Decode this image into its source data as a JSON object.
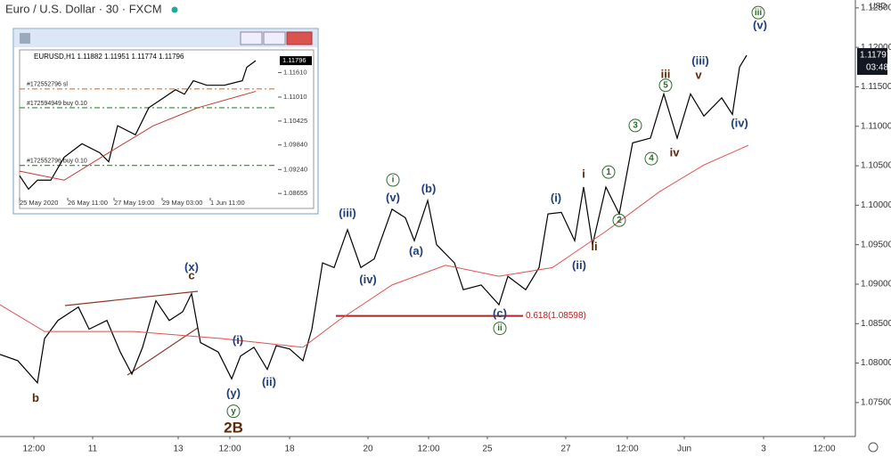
{
  "chart_data": [
    {
      "type": "line",
      "title": "Euro / U.S. Dollar · 30 · FXCM",
      "unit_label": "USD",
      "price_label": "1.11797",
      "timer_label": "03:48",
      "grid": false,
      "xlim": [
        0,
        960
      ],
      "ylim": [
        1.0707,
        1.126
      ],
      "yticks": [
        {
          "value": 1.075,
          "label": "1.07500"
        },
        {
          "value": 1.08,
          "label": "1.08000"
        },
        {
          "value": 1.085,
          "label": "1.08500"
        },
        {
          "value": 1.09,
          "label": "1.09000"
        },
        {
          "value": 1.095,
          "label": "1.09500"
        },
        {
          "value": 1.1,
          "label": "1.10000"
        },
        {
          "value": 1.105,
          "label": "1.10500"
        },
        {
          "value": 1.11,
          "label": "1.11000"
        },
        {
          "value": 1.115,
          "label": "1.11500"
        },
        {
          "value": 1.12,
          "label": "1.12000"
        },
        {
          "value": 1.125,
          "label": "1.12500"
        }
      ],
      "xticks": [
        {
          "value": 38,
          "label": "12:00"
        },
        {
          "value": 104,
          "label": "11"
        },
        {
          "value": 200,
          "label": "13"
        },
        {
          "value": 258,
          "label": "12:00"
        },
        {
          "value": 325,
          "label": "18"
        },
        {
          "value": 413,
          "label": "20"
        },
        {
          "value": 481,
          "label": "12:00"
        },
        {
          "value": 547,
          "label": "25"
        },
        {
          "value": 635,
          "label": "27"
        },
        {
          "value": 704,
          "label": "12:00"
        },
        {
          "value": 768,
          "label": "Jun"
        },
        {
          "value": 857,
          "label": "3"
        },
        {
          "value": 925,
          "label": "12:00"
        }
      ],
      "series": [
        {
          "color": "#000000",
          "x": [
            0,
            20,
            42,
            50,
            65,
            88,
            100,
            120,
            135,
            148,
            160,
            175,
            190,
            205,
            215,
            225,
            245,
            260,
            270,
            285,
            300,
            310,
            325,
            340,
            350,
            362,
            375,
            390,
            405,
            420,
            440,
            455,
            465,
            480,
            490,
            510,
            520,
            540,
            560,
            570,
            590,
            605,
            615,
            630,
            645,
            655,
            665,
            680,
            695,
            710,
            730,
            745,
            760,
            775,
            790,
            810,
            822,
            830,
            838
          ],
          "values": [
            1.0811,
            1.0803,
            1.0775,
            1.0831,
            1.0854,
            1.0871,
            1.0843,
            1.0854,
            1.0814,
            1.0786,
            1.082,
            1.0879,
            1.0854,
            1.0865,
            1.0888,
            1.0826,
            1.0814,
            1.078,
            1.0809,
            1.082,
            1.0792,
            1.0822,
            1.0818,
            1.0803,
            1.0843,
            1.0927,
            1.0921,
            1.0969,
            1.0921,
            1.0932,
            1.0995,
            1.0984,
            1.0955,
            1.1006,
            1.095,
            1.0927,
            1.0893,
            1.0899,
            1.0874,
            1.091,
            1.0893,
            1.0921,
            1.0989,
            1.0991,
            1.0955,
            1.1023,
            1.095,
            1.1023,
            1.0989,
            1.1079,
            1.1085,
            1.1141,
            1.1085,
            1.1141,
            1.1113,
            1.1136,
            1.1115,
            1.1175,
            1.119
          ]
        },
        {
          "color": "#e05050",
          "x": [
            0,
            50,
            150,
            250,
            340,
            380,
            440,
            500,
            560,
            620,
            680,
            740,
            790,
            840
          ],
          "values": [
            1.0874,
            1.084,
            1.084,
            1.0831,
            1.082,
            1.0854,
            1.0899,
            1.0924,
            1.091,
            1.0921,
            1.0967,
            1.1017,
            1.1051,
            1.1076
          ]
        }
      ],
      "levels": [
        {
          "value": 1.08598,
          "x": [
            377,
            587
          ],
          "label": "0.618(1.08598)",
          "color": "#b22222"
        }
      ],
      "annotations": [
        {
          "text": "b",
          "x": 40,
          "y": 1.0755,
          "color": "#5a2a0a"
        },
        {
          "text": "(x)",
          "x": 215,
          "y": 1.0921,
          "color": "#1f3f7a"
        },
        {
          "text": "c",
          "x": 215,
          "y": 1.091,
          "color": "#5a2a0a"
        },
        {
          "text": "(i)",
          "x": 267,
          "y": 1.0828,
          "color": "#1f3f7a"
        },
        {
          "text": "(ii)",
          "x": 302,
          "y": 1.0775,
          "color": "#1f3f7a"
        },
        {
          "text": "(y)",
          "x": 262,
          "y": 1.0761,
          "color": "#1f3f7a"
        },
        {
          "text": "y",
          "x": 262,
          "y": 1.0739,
          "color": "#2e6b2e",
          "circle": true
        },
        {
          "text": "2B",
          "x": 262,
          "y": 1.0717,
          "color": "#5a2a0a",
          "big": true
        },
        {
          "text": "(iii)",
          "x": 390,
          "y": 1.0989,
          "color": "#1f3f7a"
        },
        {
          "text": "(iv)",
          "x": 413,
          "y": 1.0905,
          "color": "#1f3f7a"
        },
        {
          "text": "i",
          "x": 441,
          "y": 1.1032,
          "color": "#2e6b2e",
          "circle": true
        },
        {
          "text": "(v)",
          "x": 441,
          "y": 1.1009,
          "color": "#1f3f7a"
        },
        {
          "text": "(a)",
          "x": 467,
          "y": 1.0941,
          "color": "#1f3f7a"
        },
        {
          "text": "(b)",
          "x": 481,
          "y": 1.102,
          "color": "#1f3f7a"
        },
        {
          "text": "(c)",
          "x": 561,
          "y": 1.0862,
          "color": "#1f3f7a"
        },
        {
          "text": "ii",
          "x": 561,
          "y": 1.0844,
          "color": "#2e6b2e",
          "circle": true
        },
        {
          "text": "(i)",
          "x": 624,
          "y": 1.1008,
          "color": "#1f3f7a"
        },
        {
          "text": "(ii)",
          "x": 650,
          "y": 1.0923,
          "color": "#1f3f7a"
        },
        {
          "text": "i",
          "x": 655,
          "y": 1.1039,
          "color": "#5a2a0a"
        },
        {
          "text": "ii",
          "x": 667,
          "y": 1.0947,
          "color": "#5a2a0a"
        },
        {
          "text": "1",
          "x": 683,
          "y": 1.1042,
          "color": "#2e6b2e",
          "circle": true
        },
        {
          "text": "2",
          "x": 695,
          "y": 1.0981,
          "color": "#2e6b2e",
          "circle": true
        },
        {
          "text": "3",
          "x": 713,
          "y": 1.1101,
          "color": "#2e6b2e",
          "circle": true
        },
        {
          "text": "4",
          "x": 731,
          "y": 1.1059,
          "color": "#2e6b2e",
          "circle": true
        },
        {
          "text": "5",
          "x": 747,
          "y": 1.1152,
          "color": "#2e6b2e",
          "circle": true
        },
        {
          "text": "iii",
          "x": 747,
          "y": 1.1165,
          "color": "#5a2a0a"
        },
        {
          "text": "iv",
          "x": 757,
          "y": 1.1066,
          "color": "#5a2a0a"
        },
        {
          "text": "(iii)",
          "x": 786,
          "y": 1.1182,
          "color": "#1f3f7a"
        },
        {
          "text": "v",
          "x": 784,
          "y": 1.1164,
          "color": "#5a2a0a"
        },
        {
          "text": "(iv)",
          "x": 830,
          "y": 1.1103,
          "color": "#1f3f7a"
        },
        {
          "text": "iii",
          "x": 851,
          "y": 1.1244,
          "color": "#2e6b2e",
          "circle": true
        },
        {
          "text": "(v)",
          "x": 853,
          "y": 1.1227,
          "color": "#1f3f7a"
        }
      ]
    },
    {
      "type": "line",
      "title": "EURUSD,H1  1.11882 1.11951 1.11774 1.11796",
      "price_label": "1.11796",
      "grid": false,
      "xlim": [
        0,
        290
      ],
      "ylim": [
        1.0855,
        1.1212
      ],
      "yticks": [
        {
          "value": 1.08655,
          "label": "1.08655"
        },
        {
          "value": 1.0924,
          "label": "1.09240"
        },
        {
          "value": 1.0984,
          "label": "1.09840"
        },
        {
          "value": 1.10425,
          "label": "1.10425"
        },
        {
          "value": 1.1101,
          "label": "1.11010"
        },
        {
          "value": 1.1161,
          "label": "1.11610"
        }
      ],
      "xticks": [
        {
          "value": 0,
          "label": "25 May 2020"
        },
        {
          "value": 54,
          "label": "26 May 11:00"
        },
        {
          "value": 106,
          "label": "27 May 19:00"
        },
        {
          "value": 160,
          "label": "29 May 03:00"
        },
        {
          "value": 214,
          "label": "1 Jun 11:00"
        }
      ],
      "series": [
        {
          "color": "#000000",
          "x": [
            0,
            10,
            20,
            35,
            50,
            70,
            90,
            100,
            110,
            130,
            145,
            160,
            175,
            185,
            195,
            210,
            230,
            250,
            255,
            265
          ],
          "values": [
            1.0909,
            1.0876,
            1.0898,
            1.0898,
            1.0954,
            1.0987,
            1.0965,
            1.0943,
            1.1031,
            1.1009,
            1.1075,
            1.1097,
            1.1119,
            1.1108,
            1.1141,
            1.113,
            1.113,
            1.1141,
            1.1174,
            1.119
          ]
        },
        {
          "color": "#c0392b",
          "x": [
            0,
            50,
            100,
            150,
            200,
            265
          ],
          "values": [
            1.092,
            1.0898,
            1.0965,
            1.1031,
            1.1075,
            1.1115
          ]
        }
      ],
      "levels": [
        {
          "value": 1.1121,
          "x": [
            0,
            288
          ],
          "label": "#172552796 sl",
          "color": "#e8702a"
        },
        {
          "value": 1.1075,
          "x": [
            0,
            288
          ],
          "label": "#172594949 buy 0.10",
          "color": "#2e8b2e"
        },
        {
          "value": 1.0934,
          "x": [
            0,
            288
          ],
          "label": "#172552796 buy 0.10",
          "color": "#2e8b2e"
        }
      ]
    }
  ]
}
